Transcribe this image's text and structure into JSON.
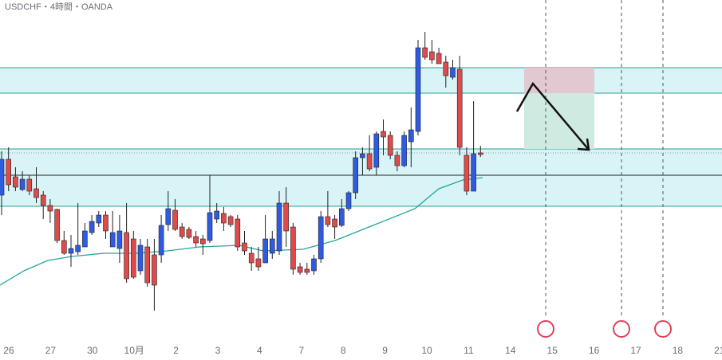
{
  "chart_data": {
    "type": "candlestick",
    "title": "USDCHF・4時間・OANDA",
    "categories": [
      "26",
      "27",
      "30",
      "10月",
      "2",
      "3",
      "4",
      "7",
      "8",
      "9",
      "10",
      "11",
      "14",
      "15",
      "16",
      "17",
      "18",
      "21"
    ]
  }
}
